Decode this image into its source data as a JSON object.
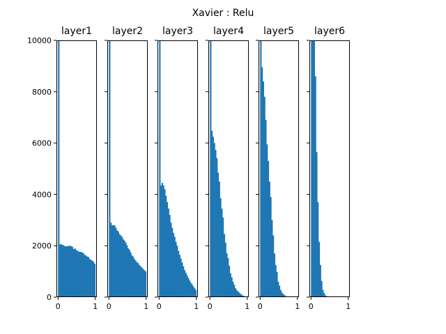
{
  "chart_data": {
    "type": "bar",
    "title": "Xavier : Relu",
    "bar_color": "#1f77b4",
    "xlim": [
      0,
      1
    ],
    "ylim": [
      0,
      10000
    ],
    "xticks": [
      "0",
      "1"
    ],
    "yticks": [
      "0",
      "2000",
      "4000",
      "6000",
      "8000",
      "10000"
    ],
    "bins": 30,
    "panels": [
      {
        "name": "layer1",
        "values": [
          10000,
          2050,
          2070,
          2030,
          2020,
          1980,
          1970,
          1990,
          1990,
          2000,
          1990,
          1960,
          1870,
          1900,
          1840,
          1800,
          1780,
          1760,
          1760,
          1740,
          1700,
          1640,
          1620,
          1580,
          1560,
          1480,
          1450,
          1420,
          1380,
          1300
        ]
      },
      {
        "name": "layer2",
        "values": [
          10000,
          2900,
          2800,
          2800,
          2800,
          2700,
          2600,
          2560,
          2450,
          2400,
          2350,
          2250,
          2200,
          2120,
          2020,
          1900,
          1840,
          1740,
          1620,
          1580,
          1480,
          1420,
          1360,
          1320,
          1250,
          1200,
          1150,
          1100,
          1050,
          1000
        ]
      },
      {
        "name": "layer3",
        "values": [
          10000,
          4350,
          4450,
          4350,
          4200,
          3950,
          3700,
          3450,
          3200,
          2900,
          2700,
          2500,
          2350,
          2150,
          2000,
          1800,
          1650,
          1500,
          1350,
          1200,
          1050,
          950,
          850,
          750,
          650,
          560,
          500,
          420,
          350,
          280
        ]
      },
      {
        "name": "layer4",
        "values": [
          10000,
          6480,
          6250,
          6000,
          5730,
          5410,
          4850,
          4500,
          3850,
          3450,
          3100,
          2460,
          2120,
          1710,
          1520,
          1220,
          920,
          770,
          600,
          480,
          350,
          270,
          220,
          180,
          130,
          90,
          60,
          40,
          25,
          10
        ]
      },
      {
        "name": "layer5",
        "values": [
          10000,
          8950,
          8400,
          7800,
          6900,
          5950,
          5300,
          4500,
          3900,
          3000,
          2400,
          1700,
          1250,
          980,
          600,
          450,
          280,
          180,
          120,
          80,
          40,
          20,
          10,
          5,
          3,
          1,
          0,
          0,
          0,
          0
        ]
      },
      {
        "name": "layer6",
        "values": [
          10000,
          10000,
          10000,
          8600,
          5650,
          3700,
          2150,
          1250,
          630,
          280,
          160,
          70,
          35,
          15,
          8,
          4,
          2,
          1,
          0,
          0,
          0,
          0,
          0,
          0,
          0,
          0,
          0,
          0,
          0,
          0
        ]
      }
    ]
  }
}
